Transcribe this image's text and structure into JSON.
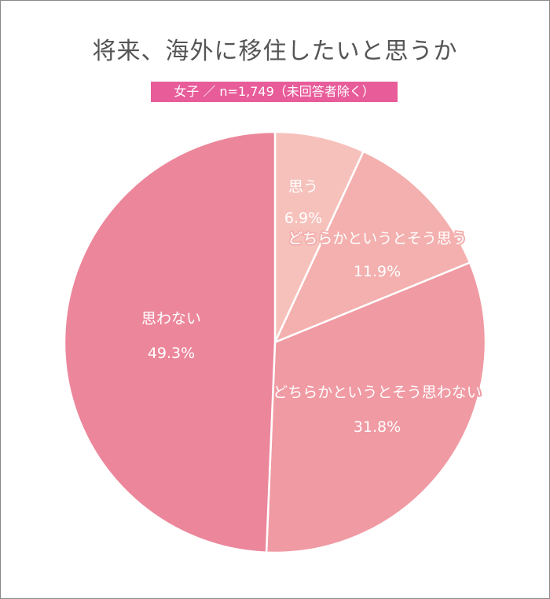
{
  "title": "将来、海外に移住したいと思うか",
  "subtitle": "女子 ／ n=1,749（未回答者除く）",
  "chart_data": {
    "type": "pie",
    "slices": [
      {
        "label": "思う",
        "value": 6.9,
        "value_text": "6.9%",
        "color": "#f6c1bb"
      },
      {
        "label": "どちらかというとそう思う",
        "value": 11.9,
        "value_text": "11.9%",
        "color": "#f3b0ae"
      },
      {
        "label": "どちらかというとそう思わない",
        "value": 31.8,
        "value_text": "31.8%",
        "color": "#f09aa3"
      },
      {
        "label": "思わない",
        "value": 49.3,
        "value_text": "49.3%",
        "color": "#ec869b"
      }
    ]
  }
}
